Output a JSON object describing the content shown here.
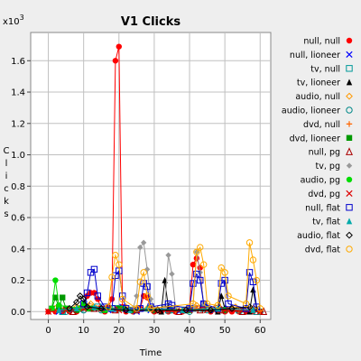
{
  "chart_data": {
    "type": "scatter",
    "title": "V1 Clicks",
    "xlabel": "Time",
    "ylabel": "Clicks",
    "y_multiplier_label": "x10",
    "y_multiplier_exponent": "3",
    "xlim": [
      -5,
      63
    ],
    "ylim": [
      -0.05,
      1.78
    ],
    "x_ticks": [
      0,
      10,
      20,
      30,
      40,
      50,
      60
    ],
    "y_ticks": [
      0.0,
      0.2,
      0.4,
      0.6,
      0.8,
      1.0,
      1.2,
      1.4,
      1.6
    ],
    "grid": true,
    "legend_position": "right",
    "series": [
      {
        "name": "null, null",
        "color": "#ff0000",
        "marker": "filled-circle",
        "points": [
          [
            0,
            0
          ],
          [
            2,
            0
          ],
          [
            4,
            0
          ],
          [
            6,
            0
          ],
          [
            8,
            0
          ],
          [
            10,
            0.04
          ],
          [
            11,
            0.1
          ],
          [
            12,
            0.12
          ],
          [
            13,
            0.12
          ],
          [
            14,
            0.08
          ],
          [
            15,
            0.02
          ],
          [
            16,
            0
          ],
          [
            17,
            0.03
          ],
          [
            18,
            0.08
          ],
          [
            19,
            1.6
          ],
          [
            20,
            1.69
          ],
          [
            21,
            0.03
          ],
          [
            22,
            0
          ],
          [
            24,
            0
          ],
          [
            26,
            0.02
          ],
          [
            27,
            0.1
          ],
          [
            28,
            0.09
          ],
          [
            29,
            0.02
          ],
          [
            30,
            0
          ],
          [
            32,
            0
          ],
          [
            34,
            0
          ],
          [
            36,
            0
          ],
          [
            38,
            0
          ],
          [
            40,
            0.02
          ],
          [
            41,
            0.3
          ],
          [
            42,
            0.34
          ],
          [
            43,
            0.28
          ],
          [
            44,
            0.03
          ],
          [
            46,
            0
          ],
          [
            48,
            0
          ],
          [
            50,
            0
          ],
          [
            52,
            0
          ],
          [
            54,
            0
          ],
          [
            56,
            0
          ],
          [
            58,
            0
          ],
          [
            60,
            0
          ]
        ]
      },
      {
        "name": "null, lioneer",
        "color": "#0000ff",
        "marker": "x",
        "points": [
          [
            3,
            0
          ],
          [
            7,
            0.01
          ],
          [
            11,
            0.04
          ],
          [
            13,
            0.02
          ],
          [
            17,
            0.01
          ],
          [
            21,
            0.03
          ],
          [
            25,
            0
          ],
          [
            29,
            0.01
          ],
          [
            33,
            0.02
          ],
          [
            37,
            0
          ],
          [
            41,
            0.02
          ],
          [
            44,
            0.05
          ],
          [
            47,
            0.01
          ],
          [
            51,
            0.02
          ],
          [
            55,
            0.01
          ],
          [
            59,
            0.02
          ]
        ]
      },
      {
        "name": "tv, null",
        "color": "#009999",
        "marker": "hollow-square",
        "points": [
          [
            4,
            0
          ],
          [
            9,
            0.02
          ],
          [
            14,
            0.03
          ],
          [
            19,
            0.02
          ],
          [
            24,
            0.01
          ],
          [
            29,
            0.02
          ],
          [
            34,
            0.01
          ],
          [
            39,
            0.01
          ],
          [
            44,
            0.02
          ],
          [
            49,
            0.01
          ],
          [
            54,
            0.01
          ],
          [
            59,
            0
          ]
        ]
      },
      {
        "name": "tv, lioneer",
        "color": "#000000",
        "marker": "filled-triangle",
        "points": [
          [
            32,
            0
          ],
          [
            33,
            0.2
          ],
          [
            34,
            0.02
          ],
          [
            48,
            0
          ],
          [
            49,
            0.1
          ],
          [
            50,
            0.02
          ],
          [
            57,
            0
          ],
          [
            58,
            0.14
          ],
          [
            59,
            0.02
          ]
        ]
      },
      {
        "name": "audio, null",
        "color": "#ff9900",
        "marker": "hollow-diamond",
        "points": [
          [
            2,
            0.02
          ],
          [
            8,
            0.03
          ],
          [
            12,
            0.05
          ],
          [
            16,
            0.02
          ],
          [
            22,
            0.03
          ],
          [
            28,
            0.02
          ],
          [
            36,
            0.01
          ],
          [
            42,
            0.04
          ],
          [
            47,
            0.02
          ],
          [
            53,
            0.03
          ],
          [
            58,
            0.02
          ]
        ]
      },
      {
        "name": "audio, lioneer",
        "color": "#008888",
        "marker": "hollow-circle",
        "points": [
          [
            5,
            0
          ],
          [
            10,
            0.01
          ],
          [
            15,
            0.01
          ],
          [
            20,
            0.02
          ],
          [
            25,
            0.01
          ],
          [
            30,
            0.01
          ],
          [
            35,
            0.01
          ],
          [
            40,
            0
          ],
          [
            45,
            0.01
          ],
          [
            50,
            0.01
          ],
          [
            55,
            0
          ],
          [
            60,
            0
          ]
        ]
      },
      {
        "name": "dvd, null",
        "color": "#ff6600",
        "marker": "plus",
        "points": [
          [
            6,
            0.01
          ],
          [
            12,
            0.02
          ],
          [
            18,
            0.01
          ],
          [
            24,
            0.02
          ],
          [
            30,
            0.01
          ],
          [
            36,
            0.01
          ],
          [
            42,
            0.02
          ],
          [
            48,
            0.01
          ],
          [
            54,
            0.01
          ],
          [
            60,
            0
          ]
        ]
      },
      {
        "name": "dvd, lioneer",
        "color": "#009900",
        "marker": "filled-square",
        "points": [
          [
            1,
            0.02
          ],
          [
            2,
            0.09
          ],
          [
            3,
            0.03
          ],
          [
            4,
            0.09
          ],
          [
            5,
            0.02
          ],
          [
            8,
            0.01
          ],
          [
            12,
            0.02
          ],
          [
            16,
            0.01
          ],
          [
            20,
            0.02
          ],
          [
            24,
            0.01
          ],
          [
            30,
            0.01
          ],
          [
            40,
            0.01
          ],
          [
            50,
            0.01
          ]
        ]
      },
      {
        "name": "null, pg",
        "color": "#aa0000",
        "marker": "hollow-triangle",
        "points": [
          [
            7,
            0
          ],
          [
            13,
            0.02
          ],
          [
            19,
            0.01
          ],
          [
            25,
            0.01
          ],
          [
            31,
            0.01
          ],
          [
            37,
            0
          ],
          [
            43,
            0.01
          ],
          [
            49,
            0.01
          ],
          [
            55,
            0
          ],
          [
            61,
            0
          ]
        ]
      },
      {
        "name": "tv, pg",
        "color": "#999999",
        "marker": "filled-diamond",
        "points": [
          [
            24,
            0.02
          ],
          [
            25,
            0.1
          ],
          [
            26,
            0.41
          ],
          [
            27,
            0.44
          ],
          [
            28,
            0.27
          ],
          [
            29,
            0.08
          ],
          [
            30,
            0.02
          ],
          [
            33,
            0.03
          ],
          [
            34,
            0.36
          ],
          [
            35,
            0.24
          ],
          [
            36,
            0.03
          ],
          [
            41,
            0.03
          ],
          [
            42,
            0.38
          ],
          [
            43,
            0.25
          ],
          [
            44,
            0.05
          ]
        ]
      },
      {
        "name": "audio, pg",
        "color": "#00dd00",
        "marker": "filled-circle",
        "points": [
          [
            1,
            0.02
          ],
          [
            2,
            0.2
          ],
          [
            3,
            0.04
          ],
          [
            9,
            0.02
          ],
          [
            10,
            0.05
          ],
          [
            11,
            0.02
          ],
          [
            16,
            0.01
          ],
          [
            21,
            0.02
          ]
        ]
      },
      {
        "name": "dvd, pg",
        "color": "#dd0000",
        "marker": "x",
        "points": [
          [
            0,
            0
          ],
          [
            5,
            0.01
          ],
          [
            10,
            0.02
          ],
          [
            15,
            0.02
          ],
          [
            20,
            0.01
          ],
          [
            25,
            0.01
          ],
          [
            30,
            0.01
          ],
          [
            35,
            0.01
          ],
          [
            40,
            0.01
          ],
          [
            45,
            0.01
          ],
          [
            50,
            0.01
          ],
          [
            55,
            0.01
          ],
          [
            60,
            0
          ]
        ]
      },
      {
        "name": "null, flat",
        "color": "#0000cc",
        "marker": "hollow-square",
        "points": [
          [
            10,
            0.05
          ],
          [
            11,
            0.12
          ],
          [
            12,
            0.25
          ],
          [
            13,
            0.27
          ],
          [
            14,
            0.1
          ],
          [
            16,
            0.03
          ],
          [
            18,
            0.02
          ],
          [
            19,
            0.23
          ],
          [
            20,
            0.26
          ],
          [
            21,
            0.1
          ],
          [
            22,
            0.02
          ],
          [
            26,
            0.02
          ],
          [
            27,
            0.18
          ],
          [
            28,
            0.16
          ],
          [
            29,
            0.03
          ],
          [
            34,
            0.05
          ],
          [
            35,
            0.04
          ],
          [
            40,
            0.02
          ],
          [
            41,
            0.18
          ],
          [
            42,
            0.24
          ],
          [
            43,
            0.2
          ],
          [
            44,
            0.05
          ],
          [
            48,
            0.02
          ],
          [
            49,
            0.18
          ],
          [
            50,
            0.2
          ],
          [
            51,
            0.05
          ],
          [
            56,
            0.02
          ],
          [
            57,
            0.25
          ],
          [
            58,
            0.19
          ],
          [
            59,
            0.03
          ]
        ]
      },
      {
        "name": "tv, flat",
        "color": "#00aaaa",
        "marker": "filled-triangle",
        "points": [
          [
            3,
            0.01
          ],
          [
            8,
            0.02
          ],
          [
            13,
            0.03
          ],
          [
            18,
            0.02
          ],
          [
            23,
            0.01
          ],
          [
            28,
            0.02
          ],
          [
            38,
            0.01
          ],
          [
            48,
            0.02
          ],
          [
            58,
            0.01
          ]
        ]
      },
      {
        "name": "audio, flat",
        "color": "#000000",
        "marker": "hollow-diamond",
        "points": [
          [
            6,
            0.02
          ],
          [
            8,
            0.06
          ],
          [
            9,
            0.1
          ],
          [
            10,
            0.08
          ],
          [
            11,
            0.03
          ],
          [
            15,
            0.02
          ],
          [
            22,
            0.01
          ],
          [
            31,
            0.01
          ],
          [
            39,
            0.01
          ],
          [
            46,
            0.01
          ],
          [
            52,
            0.02
          ],
          [
            57,
            0.03
          ]
        ]
      },
      {
        "name": "dvd, flat",
        "color": "#ffaa00",
        "marker": "hollow-circle",
        "points": [
          [
            17,
            0.03
          ],
          [
            18,
            0.22
          ],
          [
            19,
            0.36
          ],
          [
            20,
            0.3
          ],
          [
            21,
            0.08
          ],
          [
            25,
            0.02
          ],
          [
            26,
            0.19
          ],
          [
            27,
            0.25
          ],
          [
            28,
            0.1
          ],
          [
            29,
            0.02
          ],
          [
            41,
            0.05
          ],
          [
            42,
            0.38
          ],
          [
            43,
            0.41
          ],
          [
            44,
            0.3
          ],
          [
            45,
            0.05
          ],
          [
            48,
            0.04
          ],
          [
            49,
            0.28
          ],
          [
            50,
            0.25
          ],
          [
            51,
            0.1
          ],
          [
            56,
            0.05
          ],
          [
            57,
            0.44
          ],
          [
            58,
            0.33
          ],
          [
            59,
            0.2
          ],
          [
            60,
            0.02
          ]
        ]
      }
    ]
  }
}
